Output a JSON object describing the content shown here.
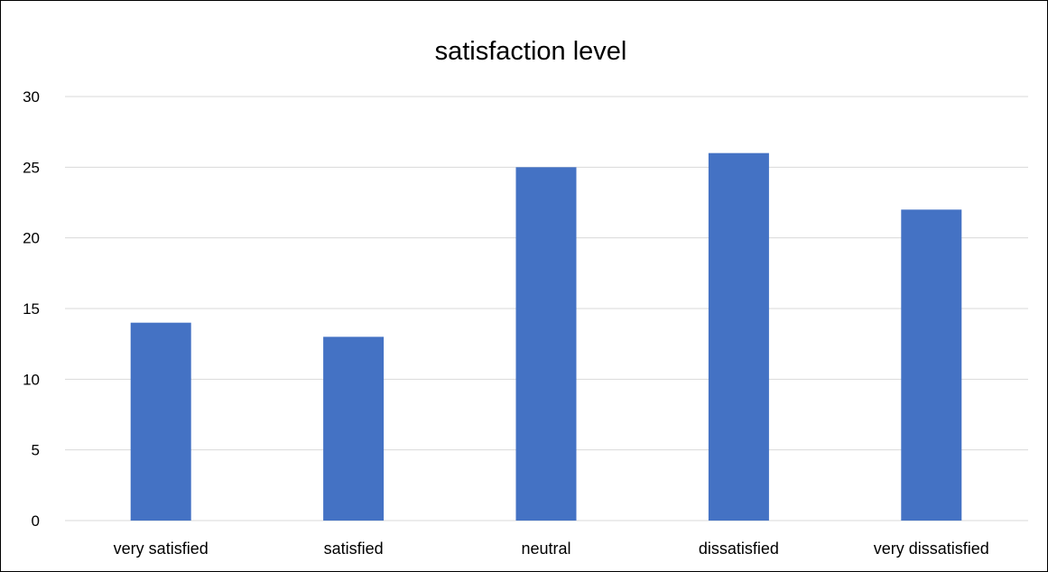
{
  "chart_data": {
    "type": "bar",
    "title": "satisfaction level",
    "xlabel": "",
    "ylabel": "",
    "categories": [
      "very satisfied",
      "satisfied",
      "neutral",
      "dissatisfied",
      "very dissatisfied"
    ],
    "values": [
      14,
      13,
      25,
      26,
      22
    ],
    "ylim": [
      0,
      30
    ],
    "yticks": [
      "0",
      "5",
      "10",
      "15",
      "20",
      "25",
      "30"
    ],
    "grid": true,
    "legend": "none",
    "colors": {
      "bar": "#4472C4",
      "grid": "#D9D9D9",
      "axis": "#D9D9D9",
      "text": "#000000"
    }
  }
}
